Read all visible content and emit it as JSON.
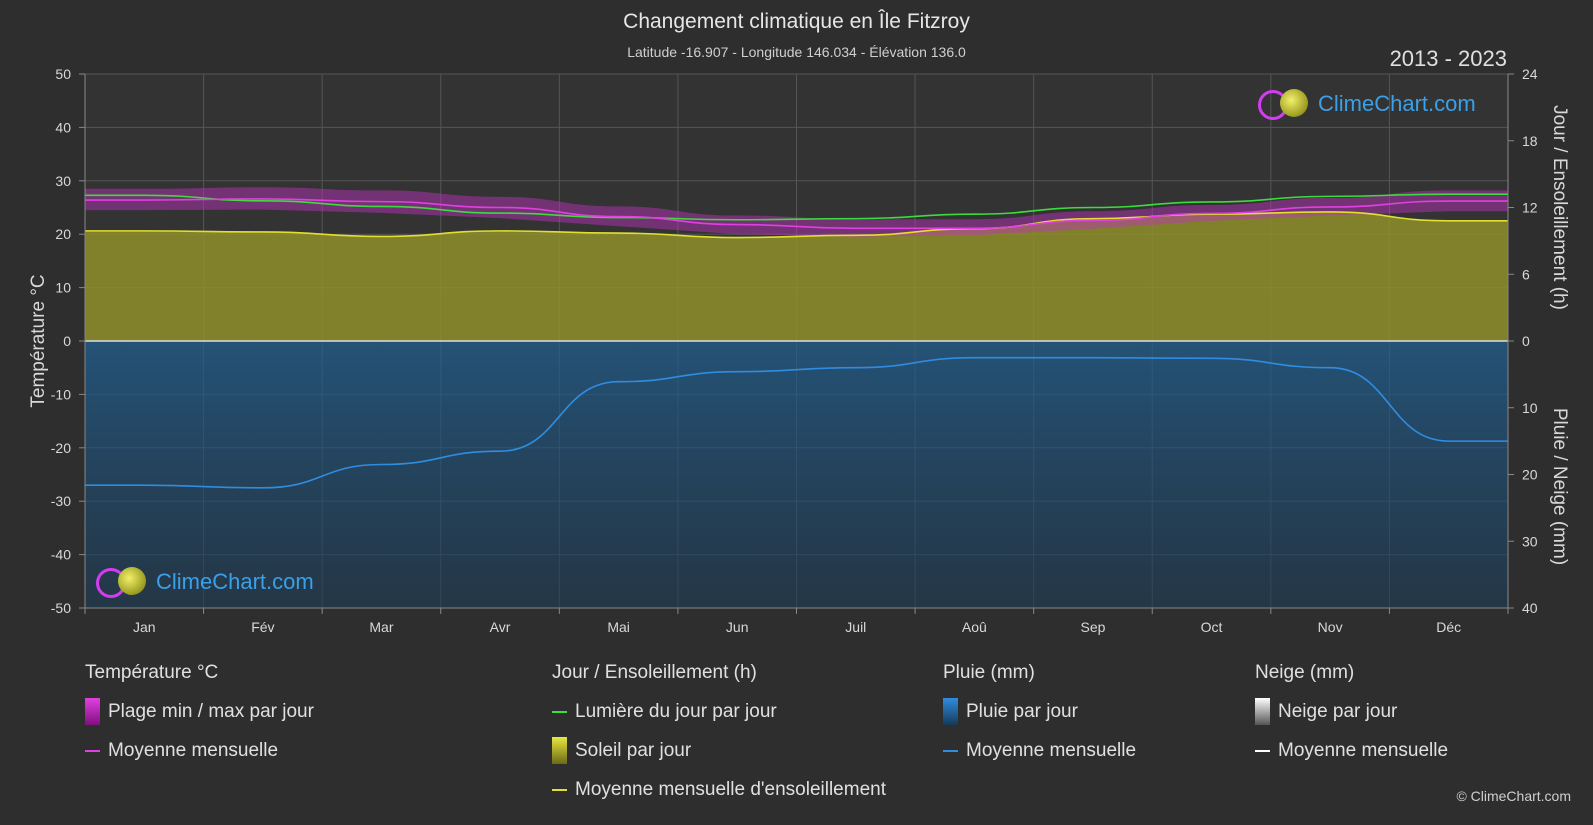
{
  "header": {
    "title": "Changement climatique en Île Fitzroy",
    "subtitle": "Latitude -16.907 - Longitude 146.034 - Élévation 136.0",
    "years": "2013 - 2023"
  },
  "branding": {
    "logo_text": "ClimeChart.com",
    "copyright": "© ClimeChart.com"
  },
  "chart_data": {
    "type": "area",
    "categories": [
      "Jan",
      "Fév",
      "Mar",
      "Avr",
      "Mai",
      "Jun",
      "Juil",
      "Aoû",
      "Sep",
      "Oct",
      "Nov",
      "Déc"
    ],
    "y_left": {
      "label": "Température °C",
      "range": [
        -50,
        50
      ],
      "ticks": [
        50,
        40,
        30,
        20,
        10,
        0,
        -10,
        -20,
        -30,
        -40,
        -50
      ]
    },
    "y_right_top": {
      "label": "Jour / Ensoleillement (h)",
      "range": [
        0,
        24
      ],
      "ticks": [
        24,
        18,
        12,
        6,
        0
      ]
    },
    "y_right_bottom": {
      "label": "Pluie / Neige (mm)",
      "range": [
        0,
        40
      ],
      "ticks": [
        10,
        20,
        30,
        40
      ]
    },
    "grid": true,
    "series": [
      {
        "name": "Lumière du jour par jour",
        "axis": "right_top",
        "color": "#3ddc3d",
        "values": [
          13.1,
          12.6,
          12.1,
          11.5,
          11.1,
          10.9,
          11.0,
          11.4,
          12.0,
          12.5,
          13.0,
          13.2
        ]
      },
      {
        "name": "Moyenne mensuelle d'ensoleillement",
        "axis": "right_top",
        "color": "#e0e030",
        "values": [
          9.9,
          9.8,
          9.4,
          9.9,
          9.7,
          9.3,
          9.5,
          10.1,
          11.0,
          11.4,
          11.6,
          10.8
        ]
      },
      {
        "name": "Moyenne mensuelle (température)",
        "axis": "left",
        "color": "#e040e0",
        "values": [
          26.4,
          26.6,
          26.1,
          25.0,
          23.3,
          21.8,
          21.1,
          21.1,
          22.6,
          23.9,
          25.1,
          26.2
        ]
      },
      {
        "name": "Moyenne mensuelle (pluie)",
        "axis": "right_bottom",
        "color": "#2f8de0",
        "values": [
          21.6,
          22.0,
          18.5,
          16.5,
          6.1,
          4.6,
          4.0,
          2.5,
          2.5,
          2.6,
          4.0,
          15.0
        ]
      }
    ],
    "temp_range_band": {
      "name": "Plage min / max par jour",
      "min": [
        24.5,
        24.6,
        24.0,
        23.0,
        21.5,
        20.0,
        19.5,
        19.8,
        21.0,
        22.5,
        23.5,
        24.3
      ],
      "max": [
        28.5,
        28.8,
        28.2,
        27.0,
        25.2,
        23.5,
        22.8,
        22.8,
        24.3,
        25.5,
        26.8,
        28.2
      ]
    }
  },
  "legend": {
    "temperature": {
      "heading": "Température °C",
      "items": [
        "Plage min / max par jour",
        "Moyenne mensuelle"
      ]
    },
    "sun": {
      "heading": "Jour / Ensoleillement (h)",
      "items": [
        "Lumière du jour par jour",
        "Soleil par jour",
        "Moyenne mensuelle d'ensoleillement"
      ]
    },
    "rain": {
      "heading": "Pluie (mm)",
      "items": [
        "Pluie par jour",
        "Moyenne mensuelle"
      ]
    },
    "snow": {
      "heading": "Neige (mm)",
      "items": [
        "Neige par jour",
        "Moyenne mensuelle"
      ]
    }
  },
  "colors": {
    "background": "#2e2e2e",
    "grid": "#5a5a5a",
    "sun_fill": "#8f8f2a",
    "rain_fill": "#1d4f77",
    "temp_band": "#c030c0"
  }
}
